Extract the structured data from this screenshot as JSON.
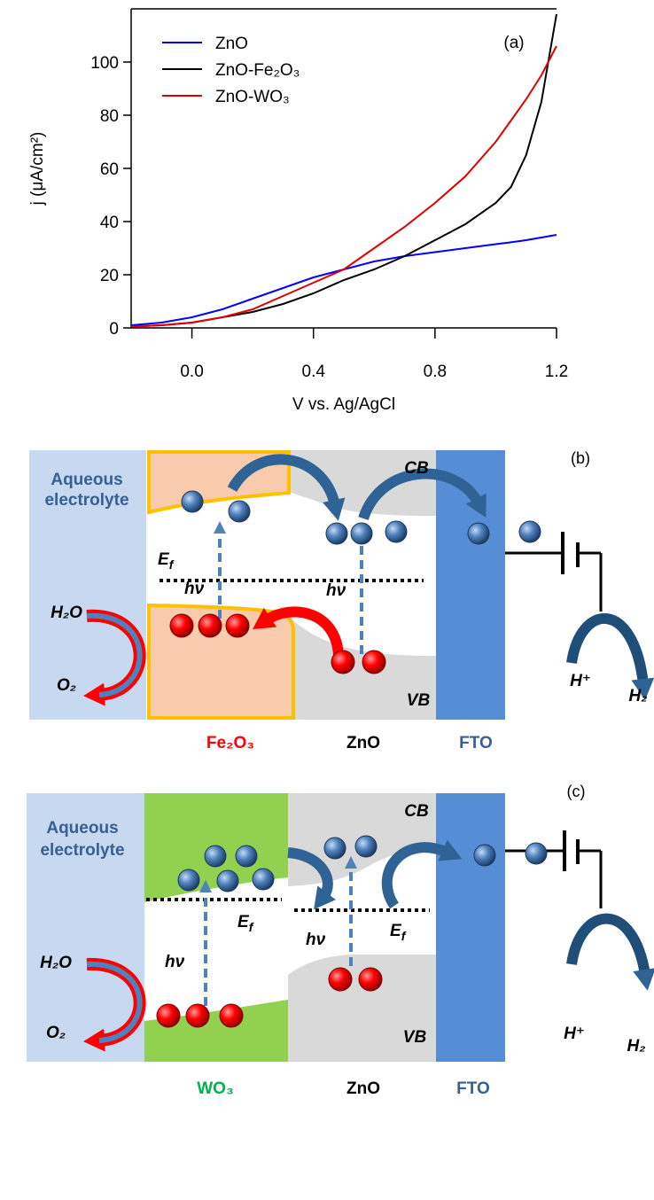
{
  "chart_data": {
    "type": "line",
    "annotation": "(a)",
    "xlabel": "V vs. Ag/AgCl",
    "ylabel": "j (μA/cm²)",
    "x": [
      -0.2,
      -0.1,
      0,
      0.1,
      0.2,
      0.3,
      0.4,
      0.5,
      0.6,
      0.7,
      0.8,
      0.9,
      1.0,
      1.05,
      1.1,
      1.15,
      1.2
    ],
    "series": [
      {
        "name": "ZnO",
        "color": "#0000ff",
        "values": [
          1,
          2,
          4,
          7,
          11,
          15,
          19,
          22,
          25,
          27,
          28.5,
          30,
          31.5,
          32.2,
          33,
          34,
          35
        ]
      },
      {
        "name": "ZnO-Fe₂O₃",
        "color": "#000000",
        "values": [
          0.5,
          1,
          2,
          4,
          6,
          9,
          13,
          18,
          22,
          27,
          33,
          39,
          47,
          53,
          65,
          85,
          118
        ]
      },
      {
        "name": "ZnO-WO₃",
        "color": "#e00000",
        "values": [
          0.5,
          1,
          2,
          4,
          7,
          12,
          17,
          22,
          30,
          38,
          47,
          57,
          70,
          78,
          86,
          95,
          106
        ]
      }
    ],
    "xlim": [
      -0.2,
      1.2
    ],
    "xticks": [
      {
        "value": 0,
        "label": "0.0"
      },
      {
        "value": 0.4,
        "label": "0.4"
      },
      {
        "value": 0.8,
        "label": "0.8"
      },
      {
        "value": 1.2,
        "label": "1.2"
      }
    ],
    "ylim": [
      0,
      120
    ],
    "yticks": [
      0,
      20,
      40,
      60,
      80,
      100
    ],
    "legend": "upper left"
  },
  "diagrams": [
    {
      "panel": "(b)",
      "electrolyte": [
        "Aqueous",
        "electrolyte"
      ],
      "cb": "CB",
      "vb": "VB",
      "fermi": [
        {
          "main": "E",
          "sub": "f"
        }
      ],
      "photon": [
        "hν",
        "hν"
      ],
      "water": "H₂O",
      "oxygen": "O₂",
      "proton": "H⁺",
      "hydrogen": "H₂",
      "layers": [
        "Fe₂O₃",
        "ZnO",
        "FTO"
      ]
    },
    {
      "panel": "(c)",
      "electrolyte": [
        "Aqueous",
        "electrolyte"
      ],
      "cb": "CB",
      "vb": "VB",
      "fermi": [
        {
          "main": "E",
          "sub": "f"
        },
        {
          "main": "E",
          "sub": "f"
        }
      ],
      "photon": [
        "hν",
        "hν"
      ],
      "water": "H₂O",
      "oxygen": "O₂",
      "proton": "H⁺",
      "hydrogen": "H₂",
      "layers": [
        "WO₃",
        "ZnO",
        "FTO"
      ]
    }
  ]
}
